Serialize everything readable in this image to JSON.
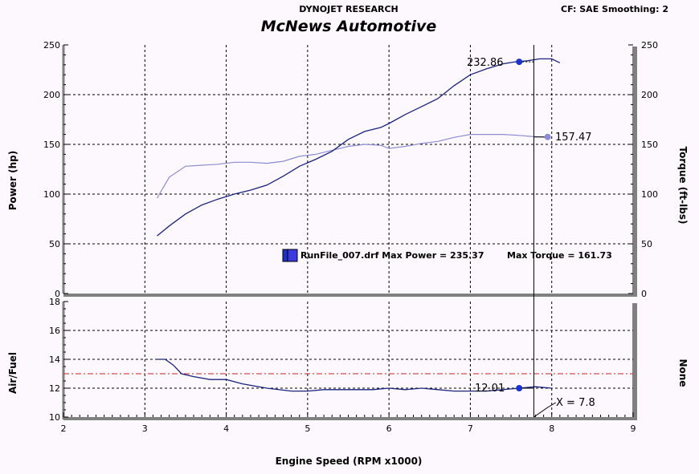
{
  "header": {
    "company": "DYNOJET RESEARCH",
    "settings": "CF: SAE  Smoothing: 2",
    "title": "McNews Automotive"
  },
  "colors": {
    "background": "#fdf8fd",
    "power": "#1a237e",
    "torque": "#8c8cd2",
    "afr": "#1a237e",
    "marker_power": "#1a33cc",
    "marker_torque": "#8c8cd2",
    "target_line": "#cc2222",
    "frame": "#808080"
  },
  "legend": {
    "entry": "RunFile_007.drf Max Power = 235.37",
    "max_torque": "Max Torque = 161.73"
  },
  "cursor": {
    "x_label": "X = 7.8",
    "power_label": "232.86",
    "torque_label": "157.47",
    "afr_label": "12.01"
  },
  "chart_data": [
    {
      "type": "line",
      "name": "power-torque",
      "xlabel": "Engine Speed (RPM x1000)",
      "ylabel": "Power (hp)",
      "ylabel_right": "Torque (ft-lbs)",
      "xlim": [
        2,
        9
      ],
      "ylim": [
        0,
        250
      ],
      "x_ticks": [
        "2",
        "3",
        "4",
        "5",
        "6",
        "7",
        "8",
        "9"
      ],
      "y_ticks": [
        "0",
        "50",
        "100",
        "150",
        "200",
        "250"
      ],
      "grid": true,
      "series": [
        {
          "key": "power",
          "x": [
            3.15,
            3.3,
            3.5,
            3.7,
            3.9,
            4.1,
            4.3,
            4.5,
            4.7,
            4.9,
            5.1,
            5.3,
            5.5,
            5.7,
            5.9,
            6.0,
            6.2,
            6.4,
            6.6,
            6.8,
            7.0,
            7.2,
            7.4,
            7.55,
            7.7,
            7.85,
            8.0,
            8.1
          ],
          "values": [
            58,
            68,
            80,
            89,
            95,
            100,
            104,
            109,
            118,
            128,
            135,
            143,
            155,
            163,
            167,
            171,
            180,
            188,
            196,
            209,
            220,
            226,
            231,
            233,
            234,
            236,
            236,
            232
          ]
        },
        {
          "key": "torque",
          "x": [
            3.15,
            3.3,
            3.5,
            3.7,
            3.9,
            4.1,
            4.3,
            4.5,
            4.7,
            4.9,
            5.1,
            5.3,
            5.5,
            5.7,
            5.9,
            6.0,
            6.2,
            6.4,
            6.6,
            6.8,
            7.0,
            7.2,
            7.4,
            7.6,
            7.75,
            7.95
          ],
          "values": [
            96,
            117,
            128,
            129,
            130,
            132,
            132,
            131,
            133,
            138,
            140,
            144,
            148,
            150,
            149,
            146,
            148,
            151,
            153,
            157,
            160,
            160,
            160,
            159,
            158,
            157
          ]
        }
      ]
    },
    {
      "type": "line",
      "name": "air-fuel",
      "xlabel": "Engine Speed (RPM x1000)",
      "ylabel": "Air/Fuel",
      "ylabel_right": "None",
      "xlim": [
        2,
        9
      ],
      "ylim": [
        10,
        18
      ],
      "x_ticks": [
        "2",
        "3",
        "4",
        "5",
        "6",
        "7",
        "8",
        "9"
      ],
      "y_ticks": [
        "10",
        "12",
        "14",
        "16",
        "18"
      ],
      "target": 13,
      "grid": true,
      "series": [
        {
          "key": "afr",
          "x": [
            3.15,
            3.25,
            3.35,
            3.45,
            3.6,
            3.8,
            4.0,
            4.2,
            4.5,
            4.8,
            5.0,
            5.2,
            5.5,
            5.8,
            6.0,
            6.2,
            6.4,
            6.6,
            6.8,
            7.0,
            7.2,
            7.4,
            7.6,
            7.8,
            8.0
          ],
          "values": [
            14.0,
            14.0,
            13.6,
            13.0,
            12.8,
            12.6,
            12.6,
            12.3,
            12.0,
            11.8,
            11.8,
            11.9,
            11.9,
            11.9,
            12.0,
            11.9,
            12.0,
            11.9,
            11.8,
            11.8,
            11.8,
            11.9,
            12.0,
            12.1,
            12.0
          ]
        }
      ]
    }
  ]
}
